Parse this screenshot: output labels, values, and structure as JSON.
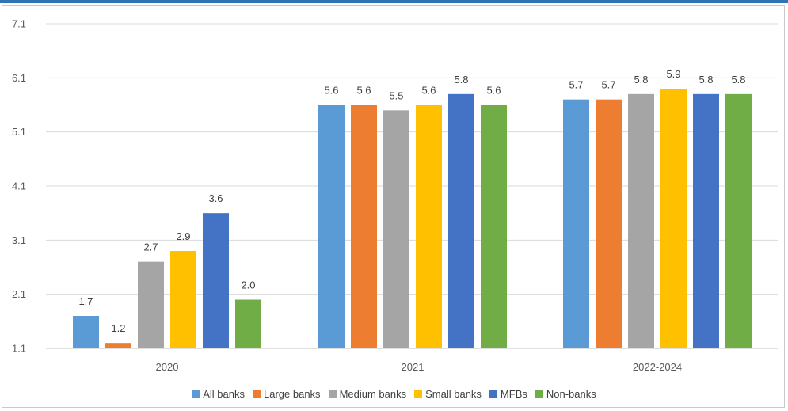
{
  "chart_data": {
    "type": "bar",
    "categories": [
      "2020",
      "2021",
      "2022-2024"
    ],
    "series": [
      {
        "name": "All banks",
        "color": "#5b9bd5",
        "values": [
          1.7,
          5.6,
          5.7
        ],
        "labels": [
          "1.7",
          "5.6",
          "5.7"
        ]
      },
      {
        "name": "Large banks",
        "color": "#ed7d31",
        "values": [
          1.2,
          5.6,
          5.7
        ],
        "labels": [
          "1.2",
          "5.6",
          "5.7"
        ]
      },
      {
        "name": "Medium banks",
        "color": "#a5a5a5",
        "values": [
          2.7,
          5.5,
          5.8
        ],
        "labels": [
          "2.7",
          "5.5",
          "5.8"
        ]
      },
      {
        "name": "Small banks",
        "color": "#ffc000",
        "values": [
          2.9,
          5.6,
          5.9
        ],
        "labels": [
          "2.9",
          "5.6",
          "5.9"
        ]
      },
      {
        "name": "MFBs",
        "color": "#4472c4",
        "values": [
          3.6,
          5.8,
          5.8
        ],
        "labels": [
          "3.6",
          "5.8",
          "5.8"
        ]
      },
      {
        "name": "Non-banks",
        "color": "#70ad47",
        "values": [
          2.0,
          5.6,
          5.8
        ],
        "labels": [
          "2.0",
          "5.6",
          "5.8"
        ]
      }
    ],
    "yticks": [
      "1.1",
      "2.1",
      "3.1",
      "4.1",
      "5.1",
      "6.1",
      "7.1"
    ],
    "ylim": [
      1.1,
      7.1
    ],
    "grid": true,
    "legend_position": "bottom",
    "title": "",
    "xlabel": "",
    "ylabel": ""
  }
}
